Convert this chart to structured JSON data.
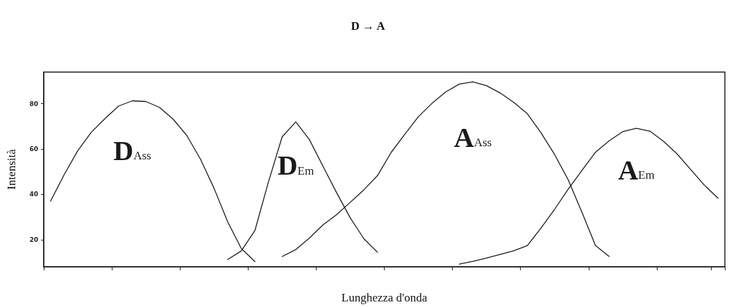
{
  "chart_data": {
    "type": "line",
    "title": "D → A",
    "xlabel": "Lunghezza d'onda",
    "ylabel": "Intensità",
    "categories": [
      null,
      null,
      null,
      null,
      null,
      null,
      null,
      null,
      null,
      null,
      null,
      null,
      null,
      null,
      null,
      null,
      null,
      null,
      null,
      null,
      null,
      null,
      null,
      null,
      null,
      null,
      null,
      null,
      null,
      null,
      null,
      null,
      null,
      null,
      null,
      null,
      null,
      null,
      null,
      null,
      null,
      null,
      null,
      null,
      null,
      null,
      null,
      null,
      null,
      null
    ],
    "series": [
      {
        "name": "DAss",
        "color": "#1a1a1a",
        "values": [
          37,
          48.7,
          59.3,
          67.5,
          73.5,
          79,
          81.3,
          81,
          78.4,
          73.2,
          66,
          55.6,
          42.7,
          27.9,
          16.1,
          10.3,
          null,
          null,
          null,
          null,
          null,
          null,
          null,
          null,
          null,
          null,
          null,
          null,
          null,
          null,
          null,
          null,
          null,
          null,
          null,
          null,
          null,
          null,
          null,
          null,
          null,
          null,
          null,
          null,
          null,
          null,
          null,
          null,
          null,
          null
        ]
      },
      {
        "name": "DEm",
        "color": "#1a1a1a",
        "values": [
          null,
          null,
          null,
          null,
          null,
          null,
          null,
          null,
          null,
          null,
          null,
          null,
          null,
          11.2,
          15,
          24,
          45.6,
          65.4,
          72,
          64.2,
          52.4,
          40.7,
          29.6,
          20.4,
          14.4,
          null,
          null,
          null,
          null,
          null,
          null,
          null,
          null,
          null,
          null,
          null,
          null,
          null,
          null,
          null,
          null,
          null,
          null,
          null,
          null,
          null,
          null,
          null,
          null,
          null
        ]
      },
      {
        "name": "AAss",
        "color": "#1a1a1a",
        "values": [
          null,
          null,
          null,
          null,
          null,
          null,
          null,
          null,
          null,
          null,
          null,
          null,
          null,
          null,
          null,
          null,
          null,
          12.5,
          15.6,
          20.7,
          26.5,
          31,
          36.5,
          42,
          48.3,
          58.5,
          66.5,
          74.3,
          80.2,
          85.2,
          88.7,
          89.7,
          88,
          84.8,
          80.6,
          75.6,
          67.2,
          57.6,
          46.4,
          32.2,
          17.4,
          12.6,
          null,
          null,
          null,
          null,
          null,
          null,
          null,
          null
        ]
      },
      {
        "name": "AEm",
        "color": "#1a1a1a",
        "values": [
          null,
          null,
          null,
          null,
          null,
          null,
          null,
          null,
          null,
          null,
          null,
          null,
          null,
          null,
          null,
          null,
          null,
          null,
          null,
          null,
          null,
          null,
          null,
          null,
          null,
          null,
          null,
          null,
          null,
          null,
          9.2,
          10.4,
          11.9,
          13.5,
          15.1,
          17.4,
          25.1,
          33.4,
          42.3,
          50.5,
          58.6,
          63.6,
          67.7,
          69.2,
          67.9,
          63.4,
          57.8,
          50.9,
          44,
          38.3
        ]
      }
    ],
    "ylim": [
      8,
      94
    ],
    "yticks": [
      20,
      40,
      60,
      80
    ],
    "tick_labels": "y",
    "grid": false,
    "marker": "none",
    "line_style": "solid"
  }
}
